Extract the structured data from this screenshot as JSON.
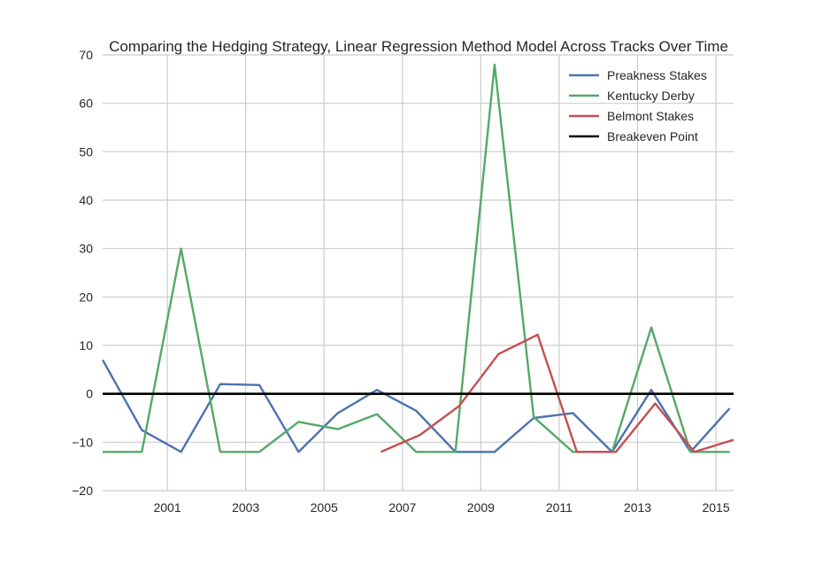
{
  "chart_data": {
    "type": "line",
    "title": "Comparing the Hedging Strategy, Linear Regression Method Model Across Tracks Over Time",
    "xlabel": "",
    "ylabel": "",
    "xlim": [
      1999.35,
      2015.45
    ],
    "ylim": [
      -20,
      70
    ],
    "x_ticks": [
      "2001",
      "2003",
      "2005",
      "2007",
      "2009",
      "2011",
      "2013",
      "2015"
    ],
    "y_ticks": [
      "70",
      "60",
      "50",
      "40",
      "30",
      "20",
      "10",
      "0",
      "−10",
      "−20"
    ],
    "grid": true,
    "legend_position": "top-right",
    "series": [
      {
        "name": "Preakness Stakes",
        "color": "#4c72b0",
        "x": [
          1999.35,
          2000.35,
          2001.35,
          2002.35,
          2003.35,
          2004.35,
          2005.35,
          2006.35,
          2007.35,
          2008.35,
          2009.35,
          2010.35,
          2011.35,
          2012.35,
          2013.35,
          2014.35,
          2015.35
        ],
        "y": [
          7,
          -7.5,
          -12,
          2,
          1.8,
          -12,
          -4,
          0.8,
          -3.5,
          -12,
          -12,
          -5,
          -4,
          -12,
          0.8,
          -12,
          -3
        ]
      },
      {
        "name": "Kentucky Derby",
        "color": "#55a868",
        "x": [
          1999.35,
          2000.35,
          2001.35,
          2002.35,
          2003.35,
          2004.35,
          2005.35,
          2006.35,
          2007.35,
          2008.35,
          2009.35,
          2010.35,
          2011.35,
          2012.35,
          2013.35,
          2014.35,
          2015.35
        ],
        "y": [
          -12,
          -12,
          30,
          -12,
          -12,
          -5.8,
          -7.3,
          -4.2,
          -12,
          -12,
          68,
          -4.8,
          -12,
          -12,
          13.7,
          -12,
          -12
        ]
      },
      {
        "name": "Belmont Stakes",
        "color": "#c44e52",
        "x": [
          2006.45,
          2007.45,
          2008.45,
          2009.45,
          2010.45,
          2011.45,
          2012.45,
          2013.45,
          2014.45,
          2015.45
        ],
        "y": [
          -12,
          -8.5,
          -2.5,
          8.2,
          12.2,
          -12,
          -12,
          -2,
          -12,
          -9.5
        ]
      },
      {
        "name": "Breakeven Point",
        "color": "#000000",
        "x": [
          1999.35,
          2015.45
        ],
        "y": [
          0,
          0
        ]
      }
    ]
  }
}
